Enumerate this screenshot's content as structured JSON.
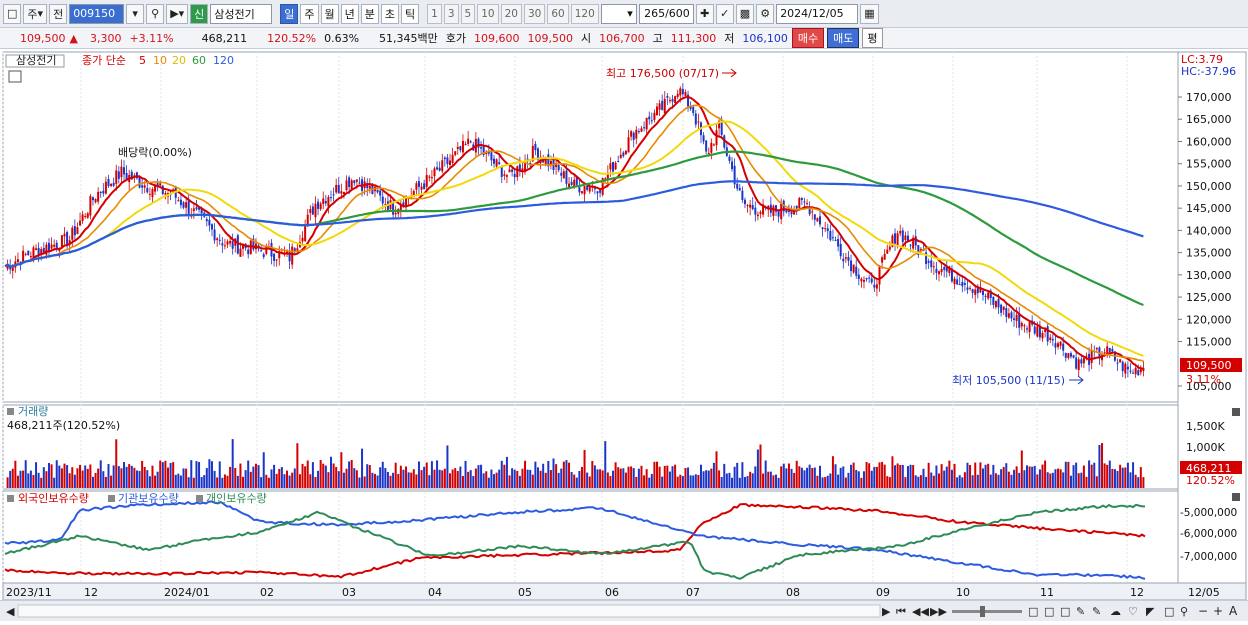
{
  "toolbar": {
    "type_label": "주",
    "prev_label": "전",
    "code": "009150",
    "name": "삼성전기",
    "credit_label": "신",
    "periods": [
      "일",
      "주",
      "월",
      "년",
      "분",
      "초",
      "틱"
    ],
    "active_period": "일",
    "numbers": [
      "1",
      "3",
      "5",
      "10",
      "20",
      "30",
      "60",
      "120"
    ],
    "count": "265",
    "total": "/600",
    "date": "2024/12/05"
  },
  "info": {
    "price": "109,500",
    "change": "3,300",
    "change_pct": "+3.11%",
    "volume": "468,211",
    "volume_ratio": "120.52%",
    "turnover": "0.63%",
    "amount": "51,345백만",
    "ask_label": "호가",
    "ask": "109,600",
    "bid": "109,500",
    "open_label": "시",
    "open": "106,700",
    "high_label": "고",
    "high": "111,300",
    "low_label": "저",
    "low": "106,100",
    "buy_label": "매수",
    "sell_label": "매도",
    "eval_label": "평"
  },
  "price_panel": {
    "tag": "삼성전기",
    "legend_prefix": "종가 단순",
    "ma_labels": [
      "5",
      "10",
      "20",
      "60",
      "120"
    ],
    "ma_colors": [
      "#d40000",
      "#e88a00",
      "#f2d90a",
      "#2d9a3c",
      "#2d5be0"
    ],
    "lc": "LC:3.79",
    "hc": "HC:-37.96",
    "dividend": "배당락(0.00%)",
    "high_note": "최고 176,500 (07/17)",
    "low_note": "최저 105,500 (11/15)",
    "last_price": "109,500",
    "last_pct": "3.11%",
    "y_ticks": [
      "170,000",
      "165,000",
      "160,000",
      "155,000",
      "150,000",
      "145,000",
      "140,000",
      "135,000",
      "130,000",
      "125,000",
      "120,000",
      "115,000",
      "105,000"
    ]
  },
  "volume_panel": {
    "title": "거래량",
    "value": "468,211주(120.52%)",
    "ticks": [
      "1,500K",
      "1,000K"
    ],
    "last": "468,211",
    "last_pct": "120.52%"
  },
  "holding_panel": {
    "series": [
      {
        "name": "외국인보유수량",
        "color": "#d40000"
      },
      {
        "name": "기관보유수량",
        "color": "#2d5be0"
      },
      {
        "name": "개인보유수량",
        "color": "#2e8b57"
      }
    ],
    "ticks": [
      "-5,000,000",
      "-6,000,000",
      "-7,000,000"
    ]
  },
  "x_axis": [
    "2023/11",
    "12",
    "2024/01",
    "02",
    "03",
    "04",
    "05",
    "06",
    "07",
    "08",
    "09",
    "10",
    "11",
    "12",
    "12/05"
  ]
}
